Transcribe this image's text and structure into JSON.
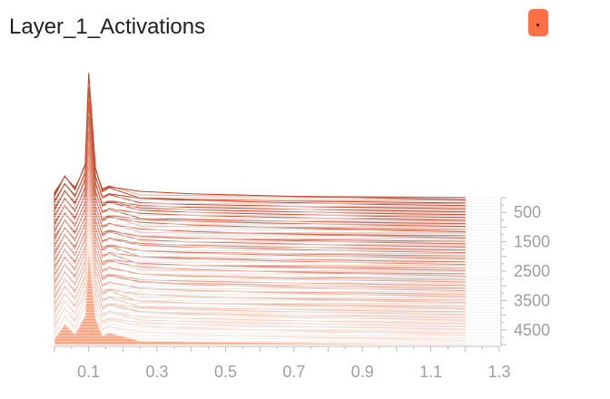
{
  "header": {
    "title": "Layer_1_Activations"
  },
  "menu_button": {
    "icon": "menu-dot-icon",
    "color": "#ff7043"
  },
  "chart_data": {
    "type": "area",
    "x_ticks": [
      "0.1",
      "0.3",
      "0.5",
      "0.7",
      "0.9",
      "1.1",
      "1.3"
    ],
    "x_tick_values": [
      0.1,
      0.3,
      0.5,
      0.7,
      0.9,
      1.1,
      1.3
    ],
    "xlim": [
      0.0,
      1.3
    ],
    "y_ticks": [
      "500",
      "1500",
      "2500",
      "3500",
      "4500"
    ],
    "y_tick_values": [
      500,
      1500,
      2500,
      3500,
      4500
    ],
    "ylim": [
      5000,
      0
    ],
    "series_steps": [
      0,
      100,
      200,
      300,
      400,
      500,
      600,
      700,
      800,
      900,
      1000,
      1100,
      1200,
      1300,
      1400,
      1500,
      1600,
      1700,
      1800,
      1900,
      2000,
      2100,
      2200,
      2300,
      2400,
      2500,
      2600,
      2700,
      2800,
      2900,
      3000,
      3100,
      3200,
      3300,
      3400,
      3500,
      3600,
      3700,
      3800,
      3900,
      4000,
      4100,
      4200,
      4300,
      4400,
      4500,
      4600,
      4700,
      4800,
      4900,
      5000
    ],
    "profile_x": [
      0.0,
      0.03,
      0.06,
      0.09,
      0.1,
      0.12,
      0.14,
      0.16,
      0.25,
      0.4,
      0.6,
      0.8,
      1.0,
      1.2
    ],
    "profile_density": [
      0.18,
      0.7,
      0.35,
      1.0,
      3.3,
      0.9,
      0.3,
      0.4,
      0.27,
      0.2,
      0.15,
      0.1,
      0.06,
      0.03
    ],
    "colors": {
      "oldest": "#ffe4d6",
      "newest": "#c0391b",
      "fill": "#ffa57f",
      "axis": "#bdbdbd",
      "text": "#9e9e9e"
    }
  }
}
